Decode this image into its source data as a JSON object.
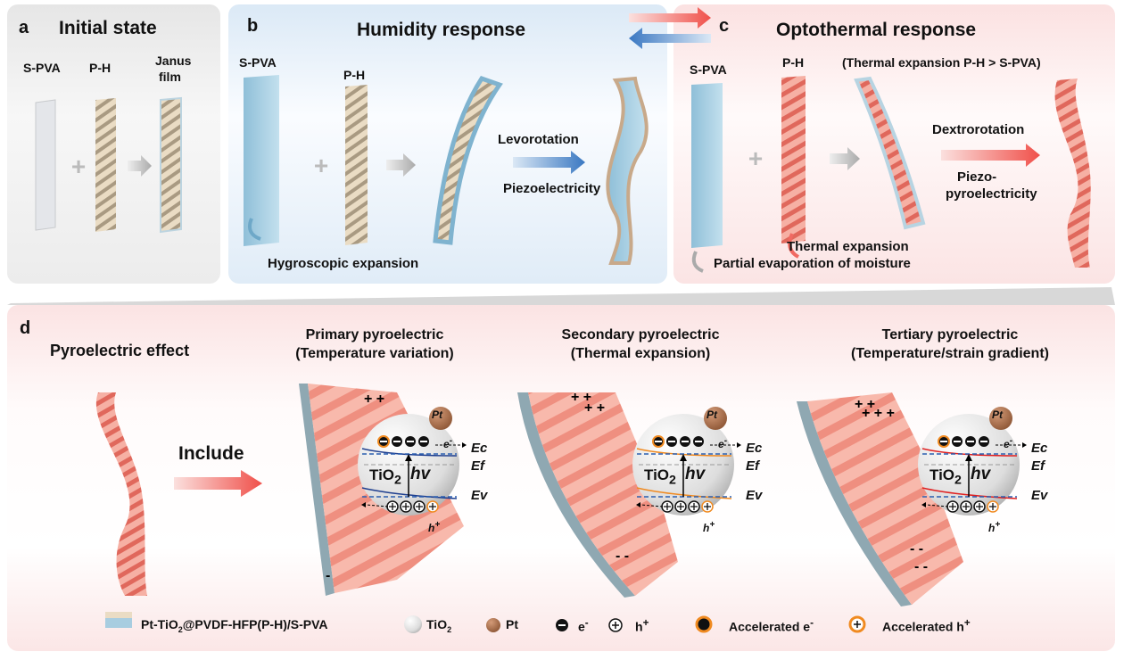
{
  "panel_a": {
    "letter": "a",
    "title": "Initial state",
    "labels": [
      "S-PVA",
      "P-H",
      "Janus",
      "film"
    ]
  },
  "panel_b": {
    "letter": "b",
    "title": "Humidity response",
    "labels": [
      "S-PVA",
      "P-H"
    ],
    "arrow_top": "Levorotation",
    "arrow_bottom": "Piezoelectricity",
    "bottom_note": "Hygroscopic expansion"
  },
  "panel_c": {
    "letter": "c",
    "title": "Optothermal response",
    "labels": [
      "S-PVA",
      "P-H"
    ],
    "condition": "(Thermal expansion P-H > S-PVA)",
    "arrow_top": "Dextrorotation",
    "arrow_bottom_1": "Piezo-",
    "arrow_bottom_2": "pyroelectricity",
    "note_1": "Thermal expansion",
    "note_2": "Partial evaporation of moisture"
  },
  "panel_d": {
    "letter": "d",
    "left_title": "Pyroelectric effect",
    "include": "Include",
    "mechanisms": [
      {
        "line1": "Primary pyroelectric",
        "line2": "(Temperature variation)"
      },
      {
        "line1": "Secondary pyroelectric",
        "line2": "(Thermal expansion)"
      },
      {
        "line1": "Tertiary pyroelectric",
        "line2": "(Temperature/strain gradient)"
      }
    ],
    "sphere": {
      "tio2": "TiO",
      "tio2_sub": "2",
      "hv": "hv",
      "pt": "Pt",
      "ec": "Ec",
      "ef": "Ef",
      "ev": "Ev",
      "e": "e",
      "e_sup": "-",
      "h": "h",
      "h_sup": "+"
    }
  },
  "legend": {
    "film": "Pt-TiO",
    "film_sub": "2",
    "film_rest": "@PVDF-HFP(P-H)/S-PVA",
    "tio2": "TiO",
    "tio2_sub": "2",
    "pt": "Pt",
    "electron": "e",
    "electron_sup": "-",
    "hole": "h",
    "hole_sup": "+",
    "acc_e": "Accelerated e",
    "acc_e_sup": "-",
    "acc_h": "Accelerated h",
    "acc_h_sup": "+"
  },
  "colors": {
    "humidity_blue": "#3a78c2",
    "thermal_red": "#f0504a",
    "film_pink": "#f29a8e",
    "film_beige": "#e8d7bc",
    "spva_blue": "#a8cde0"
  }
}
